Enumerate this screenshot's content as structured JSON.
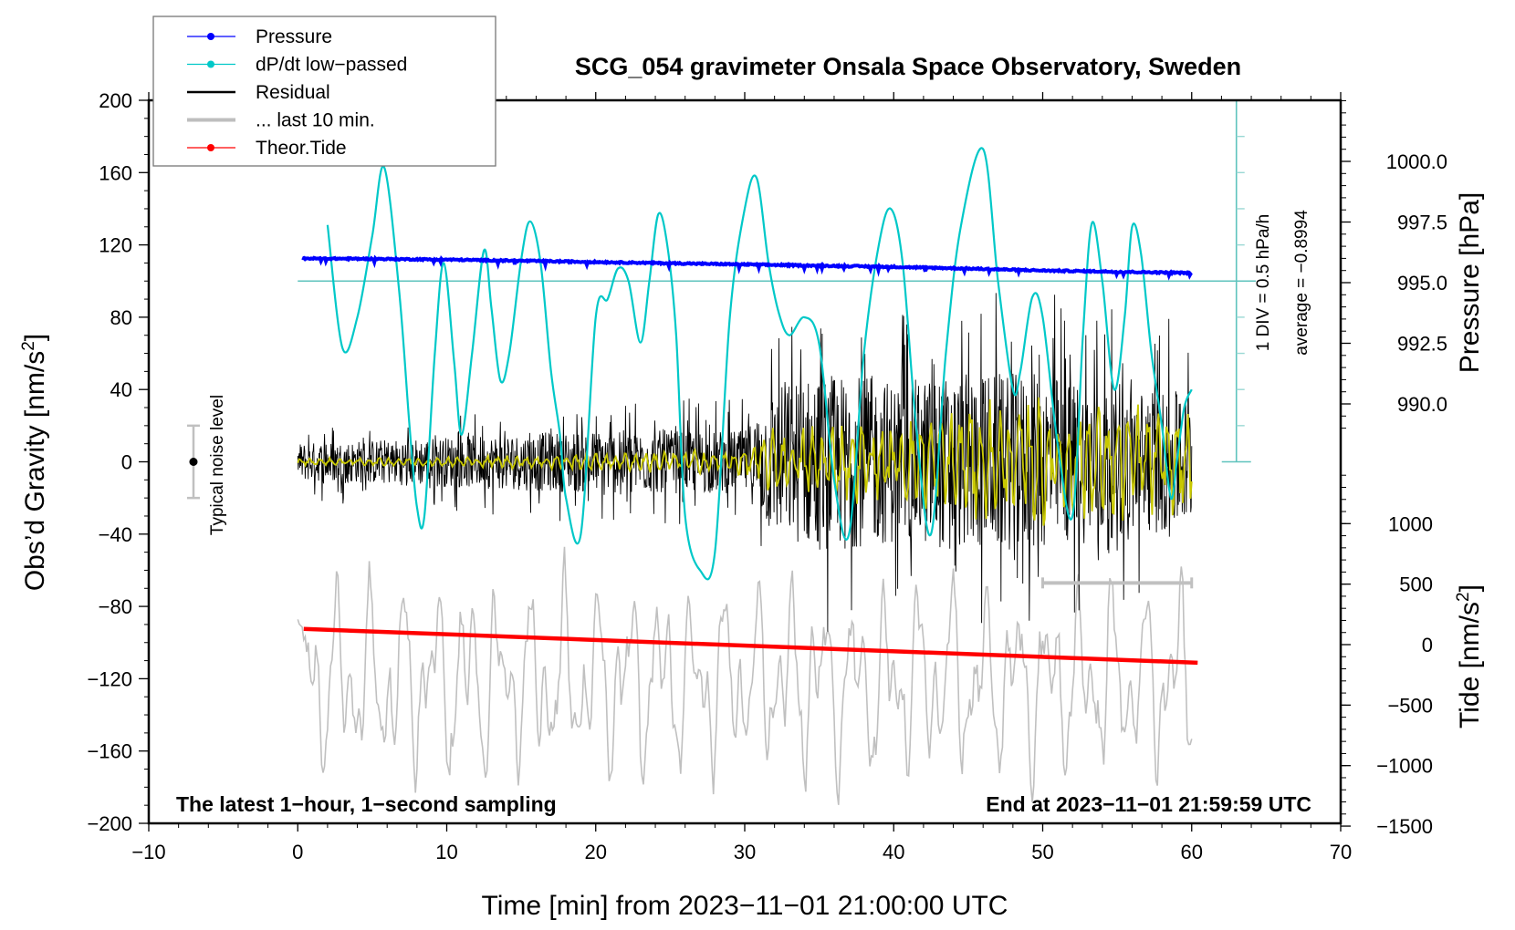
{
  "chart_data": {
    "type": "line",
    "title": "SCG_054 gravimeter Onsala Space Observatory, Sweden",
    "xlabel": "Time [min] from 2023−11−01 21:00:00 UTC",
    "ylabel_left": "Obs’d Gravity [nm/s²]",
    "ylabel_right_top": "Pressure [hPa]",
    "ylabel_right_bottom": "Tide [nm/s²]",
    "xlim": [
      -10,
      70
    ],
    "ylim": [
      -200,
      200
    ],
    "pressure_lim": [
      987.5,
      1002.5
    ],
    "tide_lim": [
      -1500,
      1500
    ],
    "x_ticks": [
      "−10",
      "0",
      "10",
      "20",
      "30",
      "40",
      "50",
      "60",
      "70"
    ],
    "x_tick_values": [
      -10,
      0,
      10,
      20,
      30,
      40,
      50,
      60,
      70
    ],
    "y_ticks": [
      "200",
      "160",
      "120",
      "80",
      "40",
      "0",
      "−40",
      "−80",
      "−120",
      "−160",
      "−200"
    ],
    "y_tick_values": [
      200,
      160,
      120,
      80,
      40,
      0,
      -40,
      -80,
      -120,
      -160,
      -200
    ],
    "pressure_ticks": [
      "1000.0",
      "997.5",
      "995.0",
      "992.5",
      "990.0"
    ],
    "pressure_tick_values": [
      1000.0,
      997.5,
      995.0,
      992.5,
      990.0
    ],
    "tide_ticks": [
      "1000",
      "500",
      "0",
      "−500",
      "−1000",
      "−1500"
    ],
    "tide_tick_values": [
      1000,
      500,
      0,
      -500,
      -1000,
      -1500
    ],
    "legend": {
      "position": "top-left",
      "entries": [
        {
          "label": "Pressure",
          "color": "#0000ff",
          "marker": true
        },
        {
          "label": "dP/dt low−passed",
          "color": "#00c8c8",
          "marker": true
        },
        {
          "label": "Residual",
          "color": "#000000",
          "marker": false
        },
        {
          "label": "... last 10 min.",
          "color": "#bebebe",
          "marker": false
        },
        {
          "label": "Theor.Tide",
          "color": "#ff0000",
          "marker": true
        }
      ]
    },
    "series": [
      {
        "name": "Pressure",
        "axis": "pressure",
        "color": "#0000ff",
        "x": [
          0,
          5,
          10,
          15,
          20,
          25,
          30,
          35,
          40,
          45,
          50,
          55,
          60
        ],
        "values": [
          996.0,
          995.98,
          995.95,
          995.9,
          995.85,
          995.8,
          995.75,
          995.7,
          995.65,
          995.58,
          995.5,
          995.45,
          995.4
        ]
      },
      {
        "name": "dP/dt low-passed",
        "axis": "gravity_scaled",
        "color": "#00c8c8",
        "x": [
          2,
          3,
          4,
          5,
          5.8,
          6.8,
          7.5,
          8,
          8.5,
          9.2,
          9.8,
          10.5,
          11,
          11.7,
          12.5,
          13,
          13.6,
          14.2,
          15,
          15.6,
          16.3,
          17,
          17.6,
          18,
          19,
          20,
          20.8,
          21.5,
          22.2,
          23,
          23.6,
          24.2,
          24.8,
          25.4,
          26,
          27,
          28,
          29,
          30,
          30.8,
          31.6,
          32.3,
          33,
          34,
          35,
          36,
          37,
          38,
          39,
          39.8,
          40.6,
          41.5,
          42.5,
          43.5,
          44.5,
          46,
          47,
          48,
          48.5,
          49.3,
          50,
          51,
          52,
          52.7,
          53.3,
          54,
          54.8,
          55.5,
          56,
          56.6,
          57.3,
          58,
          58.6,
          59,
          59.5,
          60
        ],
        "values": [
          131,
          63,
          80,
          125,
          163,
          95,
          20,
          -25,
          -30,
          60,
          110,
          55,
          15,
          60,
          117,
          85,
          45,
          60,
          112,
          133,
          110,
          50,
          15,
          -20,
          -40,
          80,
          90,
          107,
          100,
          66,
          100,
          137,
          120,
          70,
          -30,
          -60,
          -50,
          80,
          140,
          157,
          110,
          82,
          70,
          80,
          65,
          -10,
          -40,
          60,
          120,
          140,
          110,
          20,
          -40,
          60,
          130,
          173,
          100,
          40,
          50,
          91,
          80,
          10,
          -30,
          70,
          132,
          100,
          40,
          80,
          130,
          115,
          60,
          20,
          -20,
          0,
          30,
          40
        ]
      },
      {
        "name": "Residual",
        "axis": "gravity",
        "color": "#000000",
        "x": [
          0,
          10,
          20,
          30,
          32,
          35,
          40,
          45,
          50,
          55,
          60
        ],
        "envelope": [
          15,
          20,
          25,
          25,
          60,
          70,
          65,
          70,
          70,
          60,
          55
        ]
      },
      {
        "name": "... last 10 min.",
        "axis": "gravity",
        "color": "#bebebe",
        "x": [
          0,
          60
        ],
        "range": [
          -185,
          -58
        ],
        "note": "residual 50-60 min replotted across full width"
      },
      {
        "name": "Theor.Tide",
        "axis": "tide",
        "color": "#ff0000",
        "x": [
          0,
          60
        ],
        "values": [
          130,
          -150
        ]
      },
      {
        "name": "Residual low-passed",
        "axis": "gravity",
        "color": "#c8c800",
        "x": [
          0,
          10,
          20,
          30,
          32,
          40,
          45,
          50,
          55,
          60
        ],
        "envelope": [
          2,
          3,
          5,
          8,
          20,
          25,
          35,
          40,
          35,
          30
        ]
      }
    ],
    "noise_level": {
      "label": "Typical noise level",
      "x": -7,
      "center": 0,
      "half_range": 20
    },
    "last10_bracket": {
      "x_range": [
        50,
        60
      ],
      "y": -67
    },
    "dpdt_scale": {
      "label": "1 DIV = 0.5 hPa/h",
      "average": "average = −0.8994",
      "x": 63,
      "zero_y": 100,
      "bottom_y": 0
    },
    "annotations": {
      "bottom_left": "The latest 1−hour, 1−second sampling",
      "bottom_right": "End at 2023−11−01 21:59:59 UTC"
    }
  }
}
